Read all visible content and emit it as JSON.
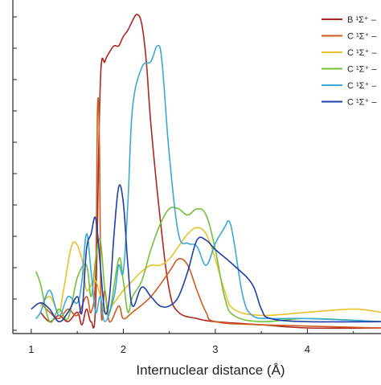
{
  "chart_data": {
    "type": "line",
    "title": "",
    "xlabel": "Internuclear distance (Å)",
    "ylabel": "",
    "xlim": [
      0.8,
      4.8
    ],
    "ylim": [
      0,
      1.0
    ],
    "x_ticks": [
      1,
      2,
      3,
      4
    ],
    "x_tick_labels": [
      "1",
      "2",
      "3",
      "4"
    ],
    "grid": false,
    "legend_position": "top-right",
    "series": [
      {
        "name": "B ¹Σ⁺ –",
        "color": "#b0261f",
        "points": [
          [
            1.1,
            0.05
          ],
          [
            1.2,
            0.02
          ],
          [
            1.3,
            0.04
          ],
          [
            1.4,
            0.02
          ],
          [
            1.5,
            0.05
          ],
          [
            1.55,
            0.01
          ],
          [
            1.6,
            0.06
          ],
          [
            1.65,
            0.02
          ],
          [
            1.7,
            0.08
          ],
          [
            1.75,
            0.78
          ],
          [
            1.8,
            0.85
          ],
          [
            1.85,
            0.88
          ],
          [
            1.9,
            0.9
          ],
          [
            1.95,
            0.9
          ],
          [
            2.0,
            0.93
          ],
          [
            2.05,
            0.95
          ],
          [
            2.1,
            0.98
          ],
          [
            2.15,
            1.0
          ],
          [
            2.2,
            0.97
          ],
          [
            2.25,
            0.85
          ],
          [
            2.3,
            0.65
          ],
          [
            2.4,
            0.35
          ],
          [
            2.5,
            0.12
          ],
          [
            2.6,
            0.05
          ],
          [
            2.8,
            0.03
          ],
          [
            3.0,
            0.02
          ],
          [
            3.5,
            0.01
          ],
          [
            4.0,
            0.0
          ],
          [
            4.8,
            0.0
          ]
        ]
      },
      {
        "name": "C ¹Σ⁺ –",
        "color": "#d15a1e",
        "points": [
          [
            1.1,
            0.08
          ],
          [
            1.2,
            0.05
          ],
          [
            1.3,
            0.03
          ],
          [
            1.4,
            0.06
          ],
          [
            1.5,
            0.04
          ],
          [
            1.6,
            0.1
          ],
          [
            1.65,
            0.05
          ],
          [
            1.7,
            0.18
          ],
          [
            1.72,
            0.7
          ],
          [
            1.74,
            0.6
          ],
          [
            1.76,
            0.05
          ],
          [
            1.8,
            0.12
          ],
          [
            1.85,
            0.02
          ],
          [
            1.95,
            0.07
          ],
          [
            2.0,
            0.03
          ],
          [
            2.1,
            0.05
          ],
          [
            2.3,
            0.1
          ],
          [
            2.5,
            0.18
          ],
          [
            2.6,
            0.22
          ],
          [
            2.7,
            0.2
          ],
          [
            2.8,
            0.12
          ],
          [
            2.9,
            0.05
          ],
          [
            3.0,
            0.02
          ],
          [
            3.5,
            0.01
          ],
          [
            4.8,
            0.0
          ]
        ]
      },
      {
        "name": "C ¹Σ⁺ –",
        "color": "#e9c12c",
        "points": [
          [
            1.1,
            0.07
          ],
          [
            1.2,
            0.1
          ],
          [
            1.3,
            0.05
          ],
          [
            1.35,
            0.12
          ],
          [
            1.45,
            0.27
          ],
          [
            1.55,
            0.22
          ],
          [
            1.6,
            0.12
          ],
          [
            1.7,
            0.15
          ],
          [
            1.8,
            0.05
          ],
          [
            1.9,
            0.08
          ],
          [
            2.0,
            0.12
          ],
          [
            2.1,
            0.15
          ],
          [
            2.2,
            0.18
          ],
          [
            2.3,
            0.2
          ],
          [
            2.4,
            0.2
          ],
          [
            2.5,
            0.22
          ],
          [
            2.6,
            0.26
          ],
          [
            2.7,
            0.3
          ],
          [
            2.8,
            0.32
          ],
          [
            2.9,
            0.3
          ],
          [
            3.0,
            0.22
          ],
          [
            3.1,
            0.12
          ],
          [
            3.2,
            0.06
          ],
          [
            3.5,
            0.04
          ],
          [
            4.0,
            0.05
          ],
          [
            4.5,
            0.06
          ],
          [
            4.8,
            0.05
          ]
        ]
      },
      {
        "name": "C ¹Σ⁺ –",
        "color": "#74bf3b",
        "points": [
          [
            1.05,
            0.18
          ],
          [
            1.1,
            0.14
          ],
          [
            1.2,
            0.02
          ],
          [
            1.3,
            0.06
          ],
          [
            1.4,
            0.03
          ],
          [
            1.5,
            0.16
          ],
          [
            1.6,
            0.2
          ],
          [
            1.65,
            0.1
          ],
          [
            1.7,
            0.22
          ],
          [
            1.75,
            0.28
          ],
          [
            1.8,
            0.12
          ],
          [
            1.85,
            0.05
          ],
          [
            1.95,
            0.22
          ],
          [
            2.0,
            0.15
          ],
          [
            2.05,
            0.05
          ],
          [
            2.1,
            0.1
          ],
          [
            2.2,
            0.15
          ],
          [
            2.3,
            0.25
          ],
          [
            2.4,
            0.33
          ],
          [
            2.5,
            0.38
          ],
          [
            2.6,
            0.38
          ],
          [
            2.7,
            0.36
          ],
          [
            2.8,
            0.38
          ],
          [
            2.9,
            0.36
          ],
          [
            3.0,
            0.25
          ],
          [
            3.1,
            0.1
          ],
          [
            3.2,
            0.04
          ],
          [
            3.5,
            0.02
          ],
          [
            4.0,
            0.03
          ],
          [
            4.8,
            0.02
          ]
        ]
      },
      {
        "name": "C ¹Σ⁺ –",
        "color": "#3aa9d6",
        "points": [
          [
            1.05,
            0.03
          ],
          [
            1.1,
            0.05
          ],
          [
            1.2,
            0.12
          ],
          [
            1.3,
            0.04
          ],
          [
            1.4,
            0.1
          ],
          [
            1.5,
            0.08
          ],
          [
            1.55,
            0.15
          ],
          [
            1.6,
            0.3
          ],
          [
            1.65,
            0.18
          ],
          [
            1.7,
            0.05
          ],
          [
            1.75,
            0.1
          ],
          [
            1.8,
            0.02
          ],
          [
            1.9,
            0.1
          ],
          [
            1.95,
            0.2
          ],
          [
            2.0,
            0.18
          ],
          [
            2.05,
            0.4
          ],
          [
            2.1,
            0.7
          ],
          [
            2.2,
            0.83
          ],
          [
            2.3,
            0.85
          ],
          [
            2.37,
            0.9
          ],
          [
            2.42,
            0.85
          ],
          [
            2.5,
            0.55
          ],
          [
            2.6,
            0.3
          ],
          [
            2.7,
            0.27
          ],
          [
            2.8,
            0.26
          ],
          [
            2.9,
            0.2
          ],
          [
            3.0,
            0.27
          ],
          [
            3.1,
            0.32
          ],
          [
            3.15,
            0.34
          ],
          [
            3.2,
            0.28
          ],
          [
            3.3,
            0.1
          ],
          [
            3.4,
            0.04
          ],
          [
            3.6,
            0.03
          ],
          [
            4.0,
            0.03
          ],
          [
            4.8,
            0.02
          ]
        ]
      },
      {
        "name": "C ¹Σ⁺ –",
        "color": "#1e3fa8",
        "points": [
          [
            1.0,
            0.06
          ],
          [
            1.1,
            0.08
          ],
          [
            1.2,
            0.06
          ],
          [
            1.3,
            0.02
          ],
          [
            1.4,
            0.05
          ],
          [
            1.5,
            0.1
          ],
          [
            1.55,
            0.05
          ],
          [
            1.6,
            0.25
          ],
          [
            1.65,
            0.3
          ],
          [
            1.7,
            0.35
          ],
          [
            1.75,
            0.2
          ],
          [
            1.8,
            0.05
          ],
          [
            1.85,
            0.1
          ],
          [
            1.9,
            0.3
          ],
          [
            1.95,
            0.45
          ],
          [
            2.0,
            0.4
          ],
          [
            2.05,
            0.2
          ],
          [
            2.1,
            0.07
          ],
          [
            2.2,
            0.13
          ],
          [
            2.3,
            0.1
          ],
          [
            2.4,
            0.07
          ],
          [
            2.5,
            0.07
          ],
          [
            2.6,
            0.1
          ],
          [
            2.7,
            0.18
          ],
          [
            2.8,
            0.28
          ],
          [
            2.9,
            0.28
          ],
          [
            3.0,
            0.25
          ],
          [
            3.2,
            0.2
          ],
          [
            3.4,
            0.14
          ],
          [
            3.5,
            0.06
          ],
          [
            3.6,
            0.03
          ],
          [
            4.0,
            0.02
          ],
          [
            4.8,
            0.02
          ]
        ]
      }
    ]
  }
}
